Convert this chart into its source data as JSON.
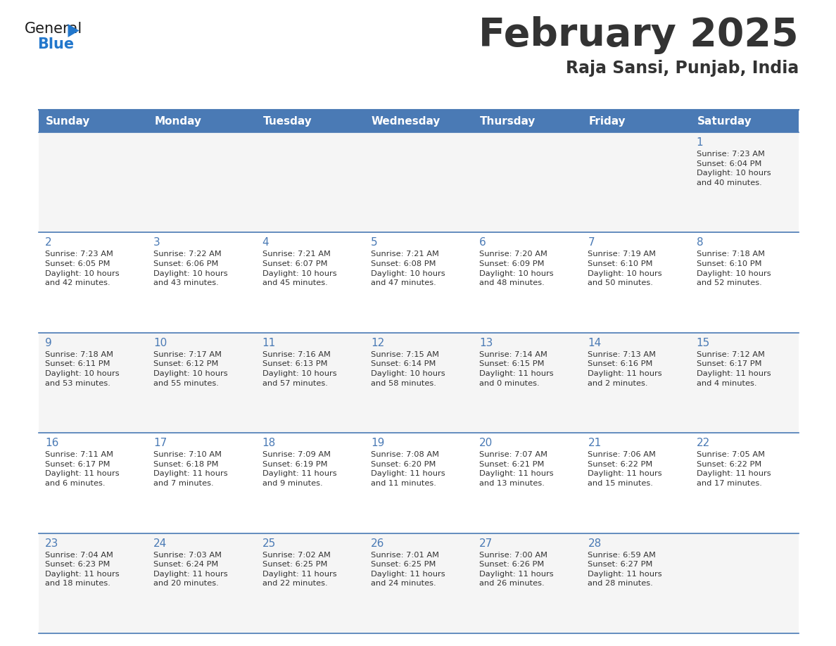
{
  "title": "February 2025",
  "subtitle": "Raja Sansi, Punjab, India",
  "header_color": "#4a7ab5",
  "header_text_color": "#FFFFFF",
  "days_of_week": [
    "Sunday",
    "Monday",
    "Tuesday",
    "Wednesday",
    "Thursday",
    "Friday",
    "Saturday"
  ],
  "background_color": "#FFFFFF",
  "cell_bg_light": "#f5f5f5",
  "cell_bg_white": "#FFFFFF",
  "grid_color": "#4a7ab5",
  "text_color": "#333333",
  "day_number_color": "#4a7ab5",
  "weeks": [
    [
      {
        "day": null,
        "info": null
      },
      {
        "day": null,
        "info": null
      },
      {
        "day": null,
        "info": null
      },
      {
        "day": null,
        "info": null
      },
      {
        "day": null,
        "info": null
      },
      {
        "day": null,
        "info": null
      },
      {
        "day": 1,
        "info": "Sunrise: 7:23 AM\nSunset: 6:04 PM\nDaylight: 10 hours\nand 40 minutes."
      }
    ],
    [
      {
        "day": 2,
        "info": "Sunrise: 7:23 AM\nSunset: 6:05 PM\nDaylight: 10 hours\nand 42 minutes."
      },
      {
        "day": 3,
        "info": "Sunrise: 7:22 AM\nSunset: 6:06 PM\nDaylight: 10 hours\nand 43 minutes."
      },
      {
        "day": 4,
        "info": "Sunrise: 7:21 AM\nSunset: 6:07 PM\nDaylight: 10 hours\nand 45 minutes."
      },
      {
        "day": 5,
        "info": "Sunrise: 7:21 AM\nSunset: 6:08 PM\nDaylight: 10 hours\nand 47 minutes."
      },
      {
        "day": 6,
        "info": "Sunrise: 7:20 AM\nSunset: 6:09 PM\nDaylight: 10 hours\nand 48 minutes."
      },
      {
        "day": 7,
        "info": "Sunrise: 7:19 AM\nSunset: 6:10 PM\nDaylight: 10 hours\nand 50 minutes."
      },
      {
        "day": 8,
        "info": "Sunrise: 7:18 AM\nSunset: 6:10 PM\nDaylight: 10 hours\nand 52 minutes."
      }
    ],
    [
      {
        "day": 9,
        "info": "Sunrise: 7:18 AM\nSunset: 6:11 PM\nDaylight: 10 hours\nand 53 minutes."
      },
      {
        "day": 10,
        "info": "Sunrise: 7:17 AM\nSunset: 6:12 PM\nDaylight: 10 hours\nand 55 minutes."
      },
      {
        "day": 11,
        "info": "Sunrise: 7:16 AM\nSunset: 6:13 PM\nDaylight: 10 hours\nand 57 minutes."
      },
      {
        "day": 12,
        "info": "Sunrise: 7:15 AM\nSunset: 6:14 PM\nDaylight: 10 hours\nand 58 minutes."
      },
      {
        "day": 13,
        "info": "Sunrise: 7:14 AM\nSunset: 6:15 PM\nDaylight: 11 hours\nand 0 minutes."
      },
      {
        "day": 14,
        "info": "Sunrise: 7:13 AM\nSunset: 6:16 PM\nDaylight: 11 hours\nand 2 minutes."
      },
      {
        "day": 15,
        "info": "Sunrise: 7:12 AM\nSunset: 6:17 PM\nDaylight: 11 hours\nand 4 minutes."
      }
    ],
    [
      {
        "day": 16,
        "info": "Sunrise: 7:11 AM\nSunset: 6:17 PM\nDaylight: 11 hours\nand 6 minutes."
      },
      {
        "day": 17,
        "info": "Sunrise: 7:10 AM\nSunset: 6:18 PM\nDaylight: 11 hours\nand 7 minutes."
      },
      {
        "day": 18,
        "info": "Sunrise: 7:09 AM\nSunset: 6:19 PM\nDaylight: 11 hours\nand 9 minutes."
      },
      {
        "day": 19,
        "info": "Sunrise: 7:08 AM\nSunset: 6:20 PM\nDaylight: 11 hours\nand 11 minutes."
      },
      {
        "day": 20,
        "info": "Sunrise: 7:07 AM\nSunset: 6:21 PM\nDaylight: 11 hours\nand 13 minutes."
      },
      {
        "day": 21,
        "info": "Sunrise: 7:06 AM\nSunset: 6:22 PM\nDaylight: 11 hours\nand 15 minutes."
      },
      {
        "day": 22,
        "info": "Sunrise: 7:05 AM\nSunset: 6:22 PM\nDaylight: 11 hours\nand 17 minutes."
      }
    ],
    [
      {
        "day": 23,
        "info": "Sunrise: 7:04 AM\nSunset: 6:23 PM\nDaylight: 11 hours\nand 18 minutes."
      },
      {
        "day": 24,
        "info": "Sunrise: 7:03 AM\nSunset: 6:24 PM\nDaylight: 11 hours\nand 20 minutes."
      },
      {
        "day": 25,
        "info": "Sunrise: 7:02 AM\nSunset: 6:25 PM\nDaylight: 11 hours\nand 22 minutes."
      },
      {
        "day": 26,
        "info": "Sunrise: 7:01 AM\nSunset: 6:25 PM\nDaylight: 11 hours\nand 24 minutes."
      },
      {
        "day": 27,
        "info": "Sunrise: 7:00 AM\nSunset: 6:26 PM\nDaylight: 11 hours\nand 26 minutes."
      },
      {
        "day": 28,
        "info": "Sunrise: 6:59 AM\nSunset: 6:27 PM\nDaylight: 11 hours\nand 28 minutes."
      },
      {
        "day": null,
        "info": null
      }
    ]
  ],
  "logo_color_general": "#1a1a1a",
  "logo_color_blue": "#2277CC",
  "logo_triangle_color": "#2277CC"
}
